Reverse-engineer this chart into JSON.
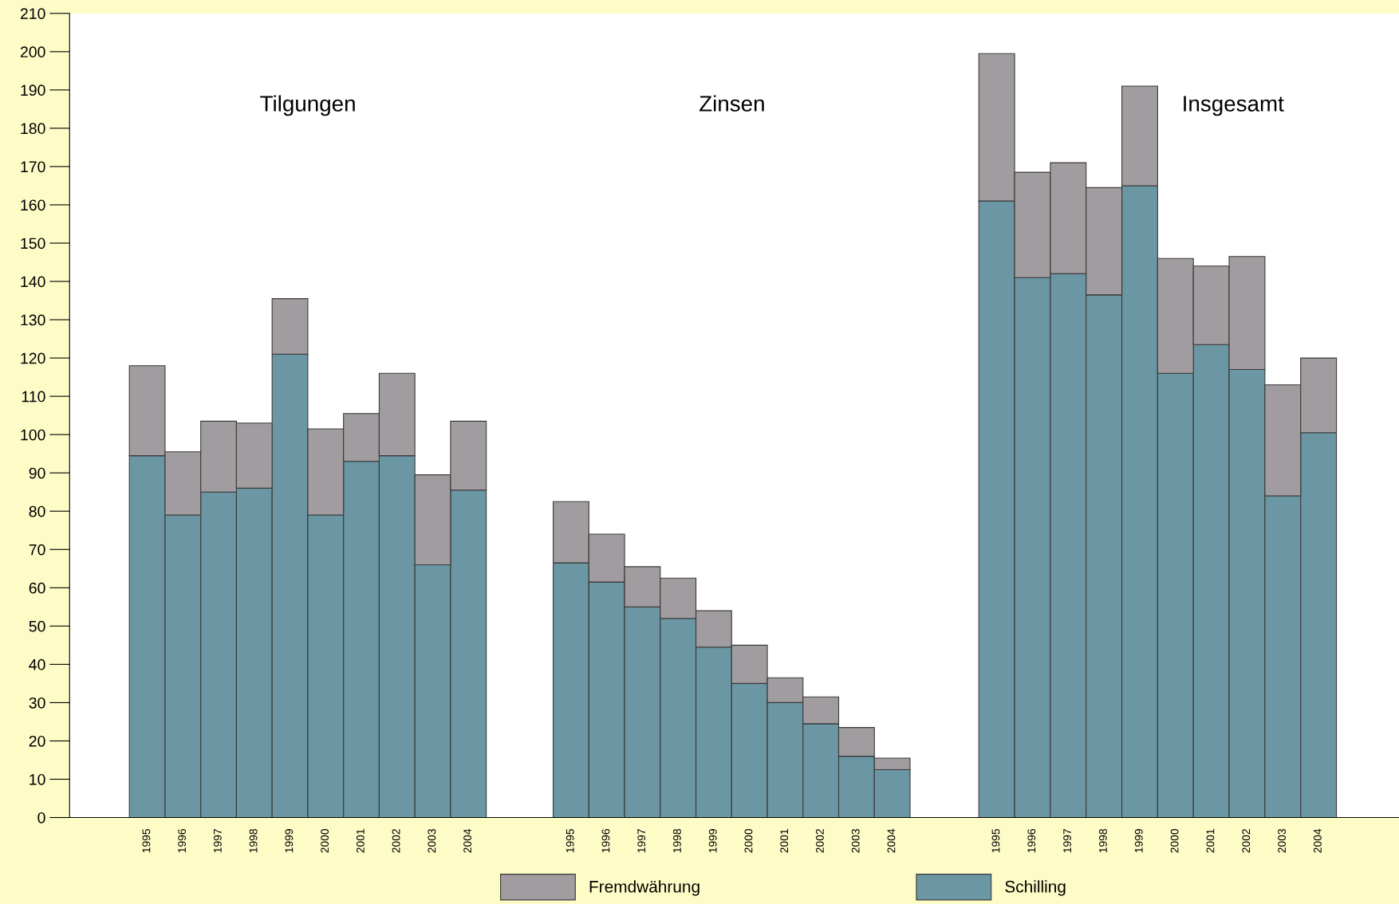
{
  "chart_data": [
    {
      "type": "bar",
      "stacked": true,
      "title": "Tilgungen",
      "categories": [
        "1995",
        "1996",
        "1997",
        "1998",
        "1999",
        "2000",
        "2001",
        "2002",
        "2003",
        "2004"
      ],
      "ylim": [
        0,
        210
      ],
      "yticks": [
        0,
        10,
        20,
        30,
        40,
        50,
        60,
        70,
        80,
        90,
        100,
        110,
        120,
        130,
        140,
        150,
        160,
        170,
        180,
        190,
        200,
        210
      ],
      "legend": "bottom",
      "grid": false,
      "series": [
        {
          "name": "Schilling",
          "color": "#6b96a3",
          "values": [
            94.5,
            79,
            85,
            86,
            121,
            79,
            93,
            94.5,
            66,
            85.5
          ]
        },
        {
          "name": "Fremdwährung",
          "color": "#a09c9f",
          "values": [
            23.5,
            16.5,
            18.5,
            17,
            14.5,
            22.5,
            12.5,
            21.5,
            23.5,
            18
          ]
        }
      ]
    },
    {
      "type": "bar",
      "stacked": true,
      "title": "Zinsen",
      "categories": [
        "1995",
        "1996",
        "1997",
        "1998",
        "1999",
        "2000",
        "2001",
        "2002",
        "2003",
        "2004"
      ],
      "ylim": [
        0,
        210
      ],
      "yticks": [
        0,
        10,
        20,
        30,
        40,
        50,
        60,
        70,
        80,
        90,
        100,
        110,
        120,
        130,
        140,
        150,
        160,
        170,
        180,
        190,
        200,
        210
      ],
      "tick_labels": "x",
      "grid": false,
      "series": [
        {
          "color": "#6b96a3",
          "values": [
            66.5,
            61.5,
            55,
            52,
            44.5,
            35,
            30,
            24.5,
            16,
            12.5
          ]
        },
        {
          "color": "#a09c9f",
          "values": [
            16,
            12.5,
            10.5,
            10.5,
            9.5,
            10,
            6.5,
            7,
            7.5,
            3
          ]
        }
      ]
    },
    {
      "type": "bar",
      "stacked": true,
      "title": "Insgesamt",
      "categories": [
        "1995",
        "1996",
        "1997",
        "1998",
        "1999",
        "2000",
        "2001",
        "2002",
        "2003",
        "2004"
      ],
      "ylim": [
        0,
        210
      ],
      "yticks": [
        0,
        10,
        20,
        30,
        40,
        50,
        60,
        70,
        80,
        90,
        100,
        110,
        120,
        130,
        140,
        150,
        160,
        170,
        180,
        190,
        200,
        210
      ],
      "tick_labels": "x",
      "grid": false,
      "series": [
        {
          "color": "#6b96a3",
          "values": [
            161,
            141,
            142,
            136.5,
            165,
            116,
            123.5,
            117,
            84,
            100.5
          ]
        },
        {
          "color": "#a09c9f",
          "values": [
            38.5,
            27.5,
            29,
            28,
            26,
            30,
            20.5,
            29.5,
            29,
            19.5
          ]
        }
      ]
    }
  ]
}
